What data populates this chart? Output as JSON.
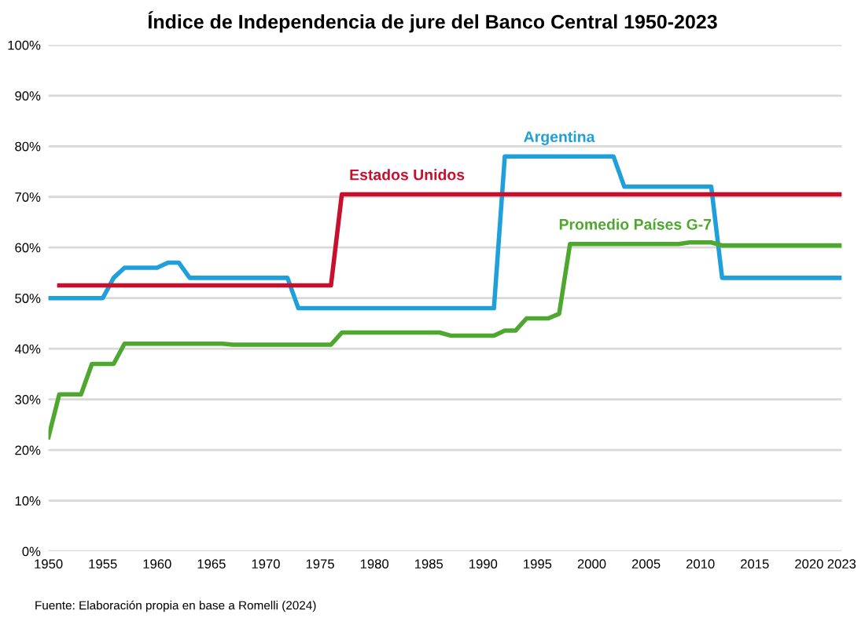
{
  "chart_data": {
    "type": "line",
    "title": "Índice de Independencia de jure del Banco Central 1950-2023",
    "x": [
      1950,
      1951,
      1952,
      1953,
      1954,
      1955,
      1956,
      1957,
      1958,
      1959,
      1960,
      1961,
      1962,
      1963,
      1964,
      1965,
      1966,
      1967,
      1968,
      1969,
      1970,
      1971,
      1972,
      1973,
      1974,
      1975,
      1976,
      1977,
      1978,
      1979,
      1980,
      1981,
      1982,
      1983,
      1984,
      1985,
      1986,
      1987,
      1988,
      1989,
      1990,
      1991,
      1992,
      1993,
      1994,
      1995,
      1996,
      1997,
      1998,
      1999,
      2000,
      2001,
      2002,
      2003,
      2004,
      2005,
      2006,
      2007,
      2008,
      2009,
      2010,
      2011,
      2012,
      2013,
      2014,
      2015,
      2016,
      2017,
      2018,
      2019,
      2020,
      2021,
      2022,
      2023
    ],
    "series": [
      {
        "name": "Argentina",
        "color": "#1fa0db",
        "values": [
          50,
          50,
          50,
          50,
          50,
          50,
          54,
          56,
          56,
          56,
          56,
          57,
          57,
          54,
          54,
          54,
          54,
          54,
          54,
          54,
          54,
          54,
          54,
          48,
          48,
          48,
          48,
          48,
          48,
          48,
          48,
          48,
          48,
          48,
          48,
          48,
          48,
          48,
          48,
          48,
          48,
          48,
          78,
          78,
          78,
          78,
          78,
          78,
          78,
          78,
          78,
          78,
          78,
          72,
          72,
          72,
          72,
          72,
          72,
          72,
          72,
          72,
          54,
          54,
          54,
          54,
          54,
          54,
          54,
          54,
          54,
          54,
          54,
          54
        ]
      },
      {
        "name": "Estados Unidos",
        "color": "#c8102e",
        "values": [
          null,
          52.5,
          52.5,
          52.5,
          52.5,
          52.5,
          52.5,
          52.5,
          52.5,
          52.5,
          52.5,
          52.5,
          52.5,
          52.5,
          52.5,
          52.5,
          52.5,
          52.5,
          52.5,
          52.5,
          52.5,
          52.5,
          52.5,
          52.5,
          52.5,
          52.5,
          52.5,
          70.5,
          70.5,
          70.5,
          70.5,
          70.5,
          70.5,
          70.5,
          70.5,
          70.5,
          70.5,
          70.5,
          70.5,
          70.5,
          70.5,
          70.5,
          70.5,
          70.5,
          70.5,
          70.5,
          70.5,
          70.5,
          70.5,
          70.5,
          70.5,
          70.5,
          70.5,
          70.5,
          70.5,
          70.5,
          70.5,
          70.5,
          70.5,
          70.5,
          70.5,
          70.5,
          70.5,
          70.5,
          70.5,
          70.5,
          70.5,
          70.5,
          70.5,
          70.5,
          70.5,
          70.5,
          70.5,
          70.5
        ]
      },
      {
        "name": "Promedio Países G-7",
        "color": "#4ea72e",
        "values": [
          22.5,
          31,
          31,
          31,
          37,
          37,
          37,
          41,
          41,
          41,
          41,
          41,
          41,
          41,
          41,
          41,
          41,
          40.8,
          40.8,
          40.8,
          40.8,
          40.8,
          40.8,
          40.8,
          40.8,
          40.8,
          40.8,
          43.2,
          43.2,
          43.2,
          43.2,
          43.2,
          43.2,
          43.2,
          43.2,
          43.2,
          43.2,
          42.6,
          42.6,
          42.6,
          42.6,
          42.6,
          43.6,
          43.6,
          46,
          46,
          46,
          46.9,
          60.7,
          60.7,
          60.7,
          60.7,
          60.7,
          60.7,
          60.7,
          60.7,
          60.7,
          60.7,
          60.7,
          61,
          61,
          61,
          60.4,
          60.4,
          60.4,
          60.4,
          60.4,
          60.4,
          60.4,
          60.4,
          60.4,
          60.4,
          60.4,
          60.4
        ]
      }
    ],
    "xlim": [
      1950,
      2023
    ],
    "xticks": [
      1950,
      1955,
      1960,
      1965,
      1970,
      1975,
      1980,
      1985,
      1990,
      1995,
      2000,
      2005,
      2010,
      2015,
      2020,
      2023
    ],
    "ylim": [
      0,
      100
    ],
    "yticks": [
      {
        "value": 0,
        "label": "0%"
      },
      {
        "value": 10,
        "label": "10%"
      },
      {
        "value": 20,
        "label": "20%"
      },
      {
        "value": 30,
        "label": "30%"
      },
      {
        "value": 40,
        "label": "40%"
      },
      {
        "value": 50,
        "label": "50%"
      },
      {
        "value": 60,
        "label": "60%"
      },
      {
        "value": 70,
        "label": "70%"
      },
      {
        "value": 80,
        "label": "80%"
      },
      {
        "value": 90,
        "label": "90%"
      },
      {
        "value": 100,
        "label": "100%"
      }
    ],
    "grid": "y",
    "legend": false,
    "marker": "none",
    "line_style": "solid",
    "annotations": [
      "Fuente: Elaboración propia en base a Romelli (2024)"
    ]
  }
}
